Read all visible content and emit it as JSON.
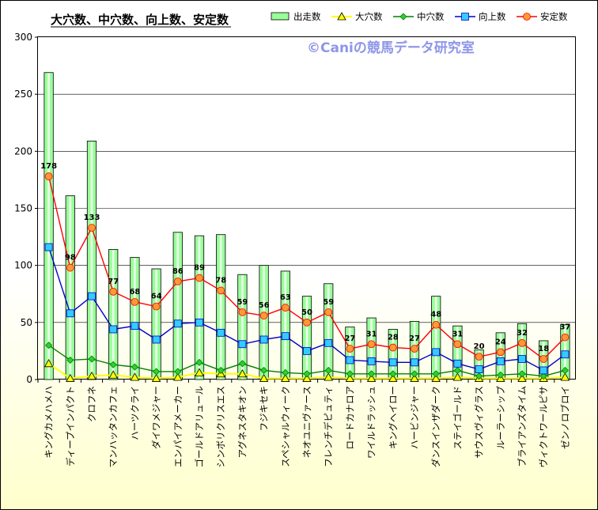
{
  "chart_data": {
    "type": "bar",
    "title": "大穴数、中穴数、向上数、安定数",
    "watermark": "©Caniの競馬データ研究室",
    "ylim": [
      0,
      300
    ],
    "yticks": [
      0,
      50,
      100,
      150,
      200,
      250,
      300
    ],
    "grid": true,
    "legend": "top-right",
    "categories": [
      "キングカメハメハ",
      "ディープインパクト",
      "クロフネ",
      "マンハッタンカフェ",
      "ハーツクライ",
      "ダイワメジャー",
      "エンパイアメーカー",
      "ゴールドアリュール",
      "シンボリクリスエス",
      "アグネスタキオン",
      "フジキセキ",
      "スペシャルウィーク",
      "ネオユニヴァース",
      "フレンチデピュティ",
      "ロードカナロア",
      "ワイルドラッシュ",
      "キングヘイロー",
      "ハービンジャー",
      "ダンスインザダーク",
      "ステイゴールド",
      "サウスヴィグラス",
      "ルーラーシップ",
      "ブライアンズタイム",
      "ヴィクトワールピサ",
      "ゼンノロブロイ"
    ],
    "series": [
      {
        "name": "出走数",
        "type": "bar",
        "color": "#99ff99",
        "values": [
          269,
          161,
          209,
          114,
          107,
          97,
          129,
          126,
          127,
          92,
          100,
          95,
          73,
          84,
          46,
          54,
          44,
          51,
          73,
          47,
          26,
          41,
          49,
          34,
          48
        ]
      },
      {
        "name": "大穴数",
        "type": "line",
        "color": "#ffff00",
        "marker": "triangle",
        "values": [
          14,
          1,
          3,
          4,
          2,
          1,
          2,
          6,
          5,
          5,
          1,
          1,
          1,
          2,
          1,
          1,
          1,
          1,
          1,
          2,
          1,
          1,
          1,
          1,
          2
        ]
      },
      {
        "name": "中穴数",
        "type": "line",
        "color": "#008000",
        "marker": "diamond",
        "values": [
          30,
          17,
          18,
          13,
          11,
          7,
          7,
          15,
          8,
          14,
          8,
          6,
          5,
          8,
          5,
          5,
          5,
          5,
          5,
          8,
          3,
          4,
          5,
          3,
          8
        ]
      },
      {
        "name": "向上数",
        "type": "line",
        "color": "#0000cc",
        "marker": "square",
        "values": [
          116,
          58,
          73,
          44,
          47,
          35,
          49,
          50,
          41,
          31,
          35,
          38,
          25,
          32,
          17,
          16,
          15,
          15,
          24,
          14,
          9,
          16,
          18,
          8,
          22
        ]
      },
      {
        "name": "安定数",
        "type": "line",
        "color": "#ff0000",
        "marker": "circle",
        "values": [
          178,
          98,
          133,
          77,
          68,
          64,
          86,
          89,
          78,
          59,
          56,
          63,
          50,
          59,
          27,
          31,
          28,
          27,
          48,
          31,
          20,
          24,
          32,
          18,
          37
        ],
        "labels": [
          "178",
          "98",
          "133",
          "77",
          "68",
          "64",
          "86",
          "89",
          "78",
          "59",
          "56",
          "63",
          "50",
          "59",
          "27",
          "31",
          "28",
          "27",
          "48",
          "31",
          "20",
          "24",
          "32",
          "18",
          "37"
        ]
      }
    ]
  }
}
